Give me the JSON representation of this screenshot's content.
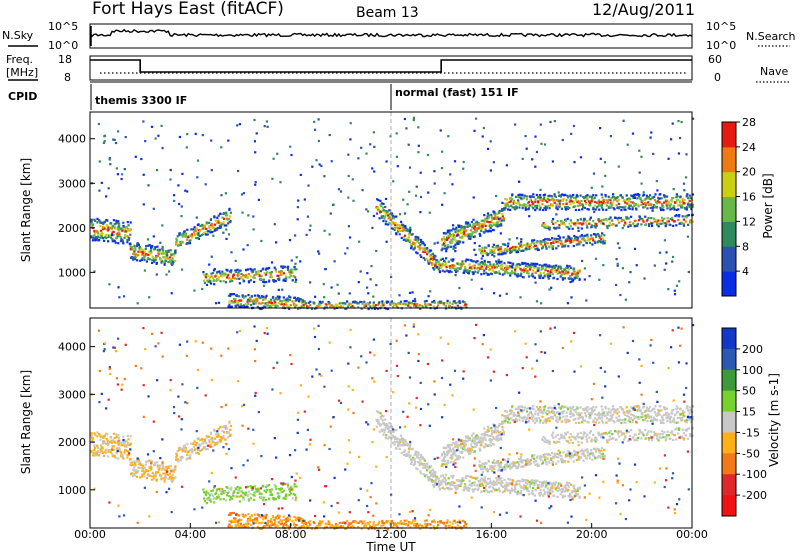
{
  "header": {
    "station": "Fort Hays East (fitACF)",
    "beam": "Beam 13",
    "date": "12/Aug/2011"
  },
  "chart_data": [
    {
      "type": "line",
      "title": "",
      "left_label": "N.Sky",
      "right_label": "N.Search",
      "left_ticks": [
        "10^5",
        "10^0"
      ],
      "right_ticks": [
        "10^5",
        "10^0"
      ]
    },
    {
      "type": "line",
      "left_label_line1": "Freq.",
      "left_label_line2": "[MHz]",
      "right_label": "Nave",
      "left_ticks": [
        "18",
        "8"
      ],
      "right_ticks": [
        "60",
        "0"
      ],
      "freq_segments": [
        {
          "x0": 0,
          "x1": 2,
          "value": 17
        },
        {
          "x0": 2,
          "x1": 14,
          "value": 11
        },
        {
          "x0": 14,
          "x1": 24,
          "value": 17
        }
      ]
    },
    {
      "type": "table",
      "label": "CPID",
      "modes": [
        {
          "start": 0,
          "text": "themis 3300 IF"
        },
        {
          "start": 12,
          "text": "normal (fast) 151 IF"
        }
      ]
    },
    {
      "type": "heatmap",
      "ylabel": "Slant Range [km]",
      "yticks": [
        1000,
        2000,
        3000,
        4000
      ],
      "ylim": [
        200,
        4600
      ],
      "colorbar_label": "Power [dB]",
      "colorbar_ticks": [
        "4",
        "8",
        "12",
        "16",
        "20",
        "24",
        "28"
      ],
      "colors": [
        "#0a2ee6",
        "#2a52b0",
        "#2e8a5c",
        "#66b84a",
        "#c8d010",
        "#ee7a12",
        "#e61a12"
      ]
    },
    {
      "type": "heatmap",
      "ylabel": "Slant Range [km]",
      "yticks": [
        1000,
        2000,
        3000,
        4000
      ],
      "ylim": [
        200,
        4600
      ],
      "colorbar_label": "Velocity [m s-1]",
      "colorbar_ticks": [
        "200",
        "100",
        "50",
        "15",
        "-15",
        "-50",
        "-100",
        "-200"
      ],
      "colors": [
        "#1238c8",
        "#2a5ab4",
        "#3c9a3c",
        "#78d22c",
        "#c8c8c8",
        "#ffb018",
        "#f27818",
        "#e02828",
        "#f01212"
      ]
    }
  ],
  "xaxis": {
    "label": "Time UT",
    "ticks": [
      "00:00",
      "04:00",
      "08:00",
      "12:00",
      "16:00",
      "20:00",
      "00:00"
    ]
  }
}
